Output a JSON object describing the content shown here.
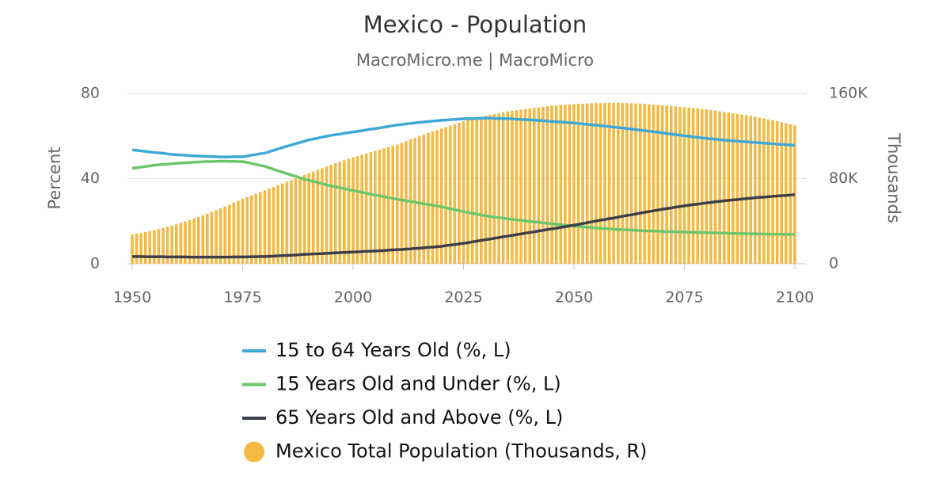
{
  "chart_data": {
    "type": "combo",
    "title": "Mexico - Population",
    "subtitle": "MacroMicro.me | MacroMicro",
    "ylabel": "Percent",
    "y2label": "Thousands",
    "x": [
      1950,
      1951,
      1952,
      1953,
      1954,
      1955,
      1956,
      1957,
      1958,
      1959,
      1960,
      1961,
      1962,
      1963,
      1964,
      1965,
      1966,
      1967,
      1968,
      1969,
      1970,
      1971,
      1972,
      1973,
      1974,
      1975,
      1976,
      1977,
      1978,
      1979,
      1980,
      1981,
      1982,
      1983,
      1984,
      1985,
      1986,
      1987,
      1988,
      1989,
      1990,
      1991,
      1992,
      1993,
      1994,
      1995,
      1996,
      1997,
      1998,
      1999,
      2000,
      2001,
      2002,
      2003,
      2004,
      2005,
      2006,
      2007,
      2008,
      2009,
      2010,
      2011,
      2012,
      2013,
      2014,
      2015,
      2016,
      2017,
      2018,
      2019,
      2020,
      2021,
      2022,
      2023,
      2024,
      2025,
      2026,
      2027,
      2028,
      2029,
      2030,
      2031,
      2032,
      2033,
      2034,
      2035,
      2036,
      2037,
      2038,
      2039,
      2040,
      2041,
      2042,
      2043,
      2044,
      2045,
      2046,
      2047,
      2048,
      2049,
      2050,
      2051,
      2052,
      2053,
      2054,
      2055,
      2056,
      2057,
      2058,
      2059,
      2060,
      2061,
      2062,
      2063,
      2064,
      2065,
      2066,
      2067,
      2068,
      2069,
      2070,
      2071,
      2072,
      2073,
      2074,
      2075,
      2076,
      2077,
      2078,
      2079,
      2080,
      2081,
      2082,
      2083,
      2084,
      2085,
      2086,
      2087,
      2088,
      2089,
      2090,
      2091,
      2092,
      2093,
      2094,
      2095,
      2096,
      2097,
      2098,
      2099,
      2100
    ],
    "xlim": [
      1950,
      2100
    ],
    "xticks": [
      1950,
      1975,
      2000,
      2025,
      2050,
      2075,
      2100
    ],
    "ylim": [
      0,
      80
    ],
    "yticks": [
      0,
      40,
      80
    ],
    "y2lim": [
      0,
      160000
    ],
    "y2ticks": [
      0,
      {
        "value": 80000,
        "label": "80K"
      },
      {
        "value": 160000,
        "label": "160K"
      }
    ],
    "grid": true,
    "series": [
      {
        "name": "15 to 64 Years Old (%, L)",
        "type": "line",
        "axis": "y",
        "color": "#3ea9d4",
        "values": [
          53.5,
          53.3,
          53.0,
          52.8,
          52.5,
          52.3,
          52.1,
          51.9,
          51.6,
          51.4,
          51.2,
          51.1,
          51.0,
          50.8,
          50.7,
          50.6,
          50.5,
          50.4,
          50.4,
          50.3,
          50.2,
          50.2,
          50.2,
          50.3,
          50.3,
          50.3,
          50.6,
          51.0,
          51.3,
          51.7,
          52.0,
          52.6,
          53.3,
          53.9,
          54.6,
          55.2,
          55.8,
          56.4,
          57.0,
          57.6,
          58.2,
          58.6,
          59.0,
          59.5,
          59.9,
          60.3,
          60.6,
          60.9,
          61.3,
          61.6,
          61.9,
          62.2,
          62.5,
          62.9,
          63.2,
          63.5,
          63.8,
          64.2,
          64.5,
          64.9,
          65.2,
          65.4,
          65.7,
          65.9,
          66.2,
          66.4,
          66.6,
          66.8,
          67.0,
          67.2,
          67.4,
          67.5,
          67.7,
          67.8,
          68.0,
          68.1,
          68.2,
          68.2,
          68.3,
          68.3,
          68.4,
          68.4,
          68.3,
          68.3,
          68.2,
          68.2,
          68.1,
          67.9,
          67.8,
          67.7,
          67.6,
          67.5,
          67.3,
          67.2,
          67.0,
          66.9,
          66.7,
          66.6,
          66.4,
          66.3,
          66.1,
          65.9,
          65.7,
          65.5,
          65.3,
          65.1,
          64.9,
          64.7,
          64.4,
          64.2,
          64.0,
          63.8,
          63.5,
          63.3,
          63.0,
          62.8,
          62.5,
          62.3,
          62.0,
          61.8,
          61.5,
          61.2,
          60.9,
          60.7,
          60.4,
          60.1,
          59.9,
          59.6,
          59.4,
          59.1,
          58.9,
          58.7,
          58.5,
          58.3,
          58.1,
          57.9,
          57.7,
          57.6,
          57.4,
          57.3,
          57.1,
          57.0,
          56.8,
          56.7,
          56.5,
          56.4,
          56.2,
          56.1,
          55.9,
          55.8,
          55.6
        ]
      },
      {
        "name": "15 Years Old and Under (%, L)",
        "type": "line",
        "axis": "y",
        "color": "#6cc66a",
        "values": [
          44.8,
          45.1,
          45.4,
          45.7,
          46.0,
          46.3,
          46.5,
          46.7,
          46.8,
          47.0,
          47.2,
          47.3,
          47.4,
          47.6,
          47.7,
          47.8,
          47.9,
          48.0,
          48.0,
          48.1,
          48.2,
          48.2,
          48.1,
          48.1,
          48.0,
          48.0,
          47.6,
          47.1,
          46.7,
          46.2,
          45.8,
          45.1,
          44.4,
          43.7,
          43.0,
          42.3,
          41.7,
          41.1,
          40.4,
          39.8,
          39.2,
          38.7,
          38.2,
          37.6,
          37.1,
          36.6,
          36.2,
          35.7,
          35.3,
          34.8,
          34.4,
          34.0,
          33.6,
          33.1,
          32.7,
          32.3,
          31.9,
          31.5,
          31.1,
          30.7,
          30.3,
          29.9,
          29.6,
          29.2,
          28.9,
          28.5,
          28.2,
          27.8,
          27.5,
          27.1,
          26.8,
          26.3,
          25.9,
          25.4,
          25.0,
          24.5,
          24.1,
          23.7,
          23.3,
          22.9,
          22.5,
          22.2,
          21.9,
          21.7,
          21.4,
          21.1,
          20.9,
          20.6,
          20.4,
          20.1,
          19.9,
          19.7,
          19.5,
          19.2,
          19.0,
          18.8,
          18.6,
          18.4,
          18.1,
          17.9,
          17.7,
          17.5,
          17.3,
          17.2,
          17.0,
          16.8,
          16.7,
          16.5,
          16.4,
          16.2,
          16.1,
          16.0,
          15.9,
          15.8,
          15.7,
          15.6,
          15.5,
          15.4,
          15.4,
          15.3,
          15.2,
          15.1,
          15.1,
          15.0,
          15.0,
          14.9,
          14.8,
          14.8,
          14.7,
          14.7,
          14.6,
          14.5,
          14.5,
          14.4,
          14.4,
          14.3,
          14.3,
          14.2,
          14.2,
          14.1,
          14.1,
          14.1,
          14.0,
          14.0,
          13.9,
          13.9,
          13.9,
          13.8,
          13.8,
          13.8,
          13.8
        ]
      },
      {
        "name": "65 Years Old and Above (%, L)",
        "type": "line",
        "axis": "y",
        "color": "#3b3f4a",
        "values": [
          3.4,
          3.4,
          3.4,
          3.3,
          3.3,
          3.3,
          3.3,
          3.3,
          3.2,
          3.2,
          3.2,
          3.2,
          3.2,
          3.1,
          3.1,
          3.1,
          3.1,
          3.1,
          3.1,
          3.1,
          3.1,
          3.1,
          3.1,
          3.2,
          3.2,
          3.2,
          3.2,
          3.3,
          3.3,
          3.4,
          3.4,
          3.5,
          3.6,
          3.7,
          3.8,
          3.9,
          4.0,
          4.1,
          4.3,
          4.4,
          4.5,
          4.6,
          4.7,
          4.8,
          4.9,
          5.0,
          5.1,
          5.2,
          5.3,
          5.4,
          5.5,
          5.6,
          5.7,
          5.8,
          5.9,
          6.0,
          6.1,
          6.2,
          6.4,
          6.5,
          6.6,
          6.7,
          6.9,
          7.0,
          7.2,
          7.3,
          7.5,
          7.7,
          7.8,
          8.0,
          8.2,
          8.5,
          8.8,
          9.0,
          9.3,
          9.6,
          9.9,
          10.3,
          10.6,
          11.0,
          11.3,
          11.6,
          12.0,
          12.3,
          12.7,
          13.0,
          13.3,
          13.7,
          14.0,
          14.4,
          14.7,
          15.0,
          15.4,
          15.7,
          16.1,
          16.4,
          16.7,
          17.1,
          17.4,
          17.8,
          18.1,
          18.5,
          18.9,
          19.3,
          19.7,
          20.1,
          20.5,
          20.8,
          21.2,
          21.5,
          21.9,
          22.3,
          22.7,
          23.0,
          23.4,
          23.8,
          24.2,
          24.5,
          24.9,
          25.2,
          25.6,
          25.9,
          26.2,
          26.6,
          26.9,
          27.2,
          27.5,
          27.8,
          28.0,
          28.3,
          28.6,
          28.8,
          29.1,
          29.3,
          29.6,
          29.8,
          30.0,
          30.2,
          30.4,
          30.6,
          30.8,
          31.0,
          31.2,
          31.3,
          31.5,
          31.7,
          31.8,
          32.0,
          32.1,
          32.3,
          32.4
        ]
      },
      {
        "name": "Mexico Total Population (Thousands, R)",
        "type": "bar",
        "axis": "y2",
        "color": "#f4b942",
        "values": [
          27500,
          28300,
          29100,
          29900,
          30700,
          31500,
          32600,
          33700,
          34800,
          35900,
          37000,
          38400,
          39800,
          41200,
          42600,
          44000,
          45600,
          47200,
          48800,
          50400,
          52000,
          53800,
          55600,
          57400,
          59200,
          61000,
          62600,
          64200,
          65800,
          67400,
          69000,
          70600,
          72200,
          73800,
          75400,
          77000,
          78600,
          80200,
          81800,
          83400,
          85000,
          86600,
          88200,
          89800,
          91400,
          93000,
          94400,
          95800,
          97200,
          98600,
          100000,
          101200,
          102400,
          103600,
          104800,
          106000,
          107200,
          108400,
          109600,
          110800,
          112000,
          113600,
          115200,
          116800,
          118400,
          120000,
          121400,
          122800,
          124200,
          125600,
          127000,
          128400,
          129800,
          131200,
          132600,
          134000,
          135000,
          136000,
          137000,
          138000,
          139000,
          139800,
          140600,
          141400,
          142200,
          143000,
          143600,
          144200,
          144800,
          145400,
          146000,
          146500,
          147000,
          147500,
          148000,
          148500,
          148800,
          149100,
          149400,
          149700,
          150000,
          150200,
          150400,
          150600,
          150800,
          151000,
          151000,
          151100,
          151100,
          151200,
          151200,
          151100,
          150900,
          150800,
          150600,
          150500,
          150200,
          149900,
          149600,
          149300,
          149000,
          148600,
          148200,
          147800,
          147400,
          147000,
          146600,
          146200,
          145800,
          145400,
          145000,
          144400,
          143800,
          143200,
          142600,
          142000,
          141400,
          140800,
          140200,
          139600,
          139000,
          138200,
          137400,
          136600,
          135800,
          135000,
          134000,
          133000,
          132000,
          131000,
          130000
        ]
      }
    ]
  }
}
